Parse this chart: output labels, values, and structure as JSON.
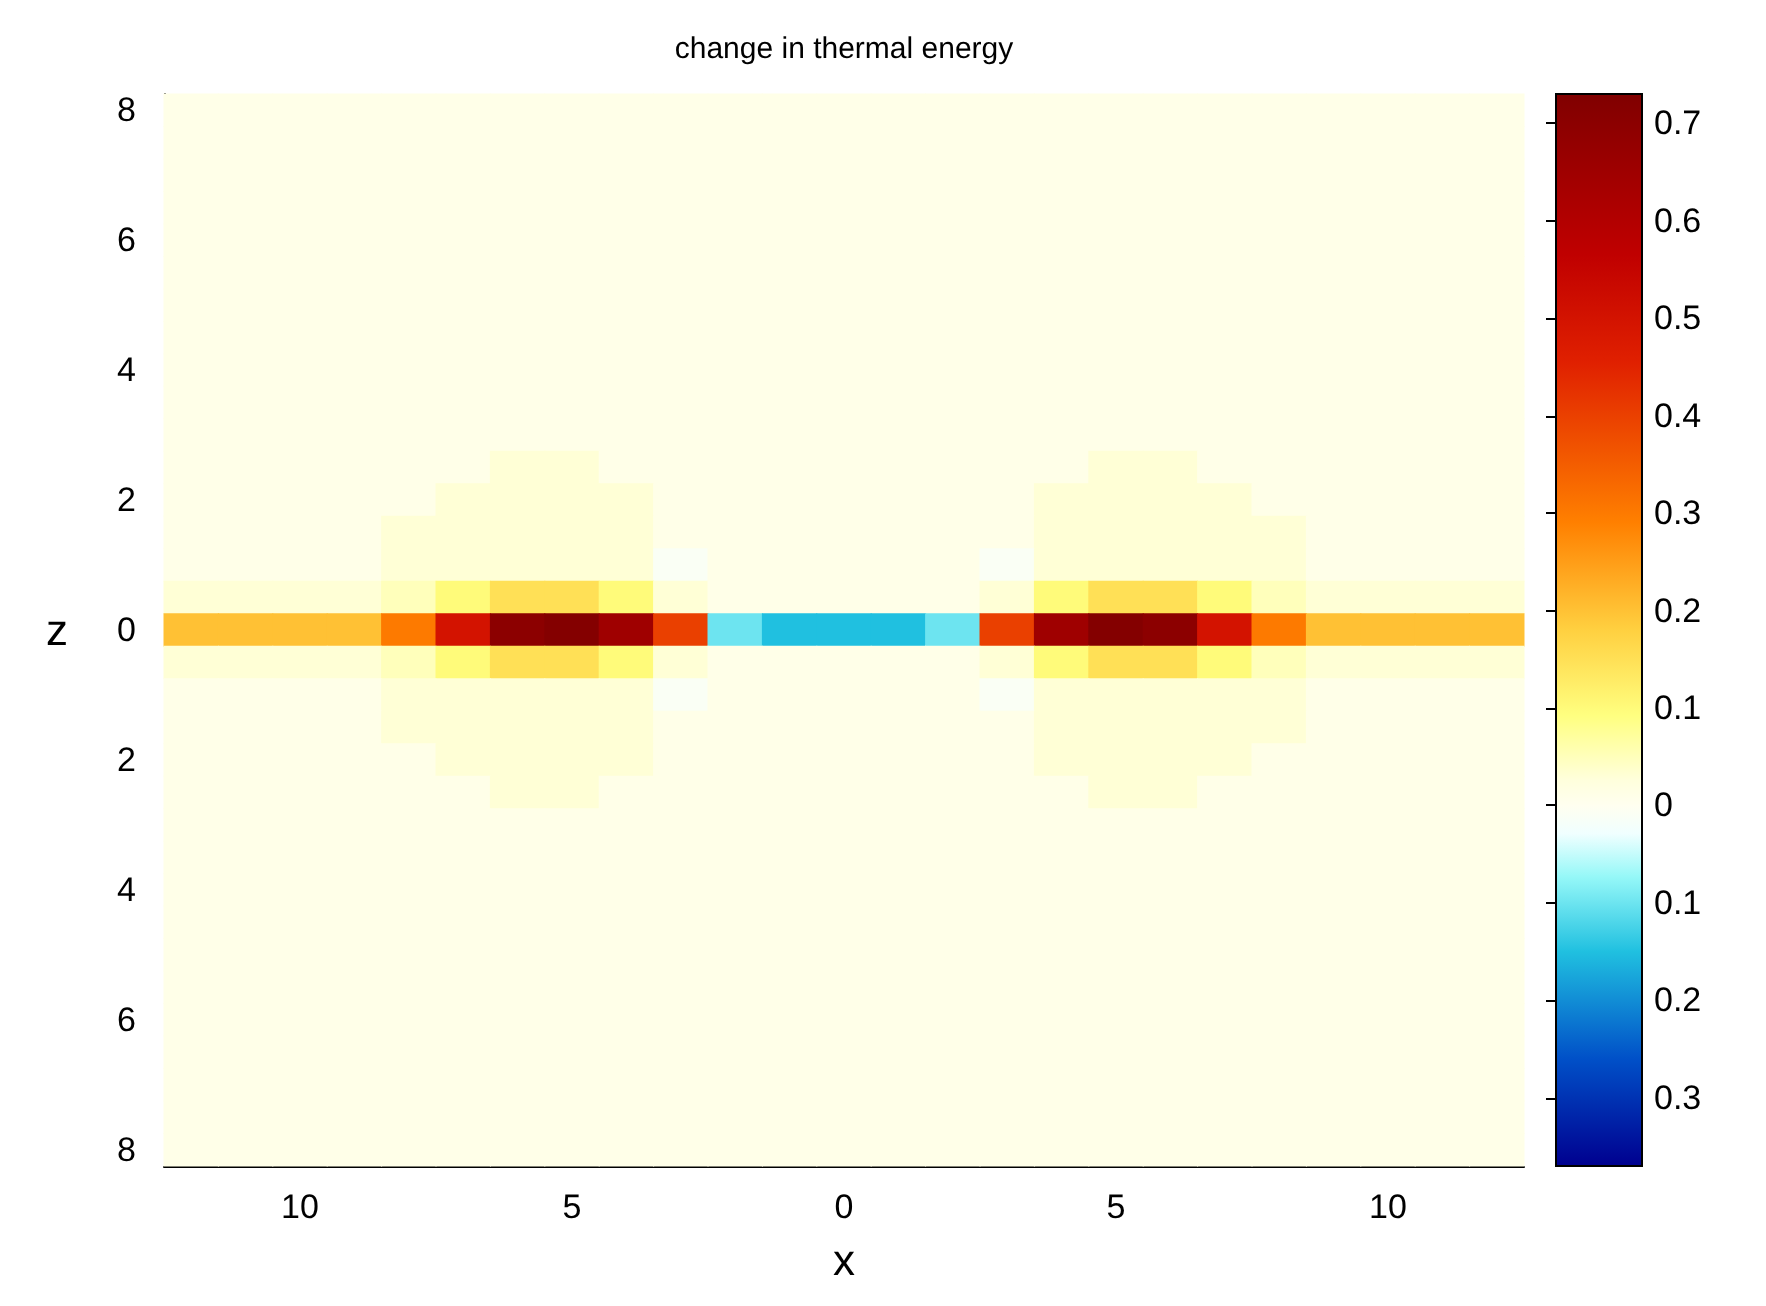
{
  "chart_data": {
    "type": "heatmap",
    "title": "change in thermal energy",
    "xlabel": "x",
    "ylabel": "z",
    "categories": [
      null,
      null,
      "10",
      null,
      null,
      null,
      null,
      "5",
      null,
      null,
      null,
      null,
      "0",
      null,
      null,
      null,
      null,
      "5",
      null,
      null,
      null,
      null,
      "10",
      null,
      null
    ],
    "y_categories": [
      "8",
      null,
      null,
      null,
      "6",
      null,
      null,
      null,
      "4",
      null,
      null,
      null,
      "2",
      null,
      null,
      null,
      "0",
      null,
      null,
      null,
      "2",
      null,
      null,
      null,
      "4",
      null,
      null,
      null,
      "6",
      null,
      null,
      null,
      "8"
    ],
    "cells": [
      [
        0.01,
        0.01,
        0.01,
        0.01,
        0.01,
        0.01,
        0.01,
        0.01,
        0.01,
        0.01,
        0.01,
        0.01,
        0.01,
        0.01,
        0.01,
        0.01,
        0.01,
        0.01,
        0.01,
        0.01,
        0.01,
        0.01,
        0.01,
        0.01,
        0.01
      ],
      [
        0.01,
        0.01,
        0.01,
        0.01,
        0.01,
        0.01,
        0.01,
        0.01,
        0.01,
        0.01,
        0.01,
        0.01,
        0.01,
        0.01,
        0.01,
        0.01,
        0.01,
        0.01,
        0.01,
        0.01,
        0.01,
        0.01,
        0.01,
        0.01,
        0.01
      ],
      [
        0.01,
        0.01,
        0.01,
        0.01,
        0.01,
        0.01,
        0.01,
        0.01,
        0.01,
        0.01,
        0.01,
        0.01,
        0.01,
        0.01,
        0.01,
        0.01,
        0.01,
        0.01,
        0.01,
        0.01,
        0.01,
        0.01,
        0.01,
        0.01,
        0.01
      ],
      [
        0.01,
        0.01,
        0.01,
        0.01,
        0.01,
        0.01,
        0.01,
        0.01,
        0.01,
        0.01,
        0.01,
        0.01,
        0.01,
        0.01,
        0.01,
        0.01,
        0.01,
        0.01,
        0.01,
        0.01,
        0.01,
        0.01,
        0.01,
        0.01,
        0.01
      ],
      [
        0.01,
        0.01,
        0.01,
        0.01,
        0.01,
        0.01,
        0.01,
        0.01,
        0.01,
        0.01,
        0.01,
        0.01,
        0.01,
        0.01,
        0.01,
        0.01,
        0.01,
        0.01,
        0.01,
        0.01,
        0.01,
        0.01,
        0.01,
        0.01,
        0.01
      ],
      [
        0.01,
        0.01,
        0.01,
        0.01,
        0.01,
        0.01,
        0.01,
        0.01,
        0.01,
        0.01,
        0.01,
        0.01,
        0.01,
        0.01,
        0.01,
        0.01,
        0.01,
        0.01,
        0.01,
        0.01,
        0.01,
        0.01,
        0.01,
        0.01,
        0.01
      ],
      [
        0.01,
        0.01,
        0.01,
        0.01,
        0.01,
        0.01,
        0.01,
        0.01,
        0.01,
        0.01,
        0.01,
        0.01,
        0.01,
        0.01,
        0.01,
        0.01,
        0.01,
        0.01,
        0.01,
        0.01,
        0.01,
        0.01,
        0.01,
        0.01,
        0.01
      ],
      [
        0.01,
        0.01,
        0.01,
        0.01,
        0.01,
        0.01,
        0.01,
        0.01,
        0.01,
        0.01,
        0.01,
        0.01,
        0.01,
        0.01,
        0.01,
        0.01,
        0.01,
        0.01,
        0.01,
        0.01,
        0.01,
        0.01,
        0.01,
        0.01,
        0.01
      ],
      [
        0.01,
        0.01,
        0.01,
        0.01,
        0.01,
        0.01,
        0.01,
        0.01,
        0.01,
        0.01,
        0.01,
        0.01,
        0.01,
        0.01,
        0.01,
        0.01,
        0.01,
        0.01,
        0.01,
        0.01,
        0.01,
        0.01,
        0.01,
        0.01,
        0.01
      ],
      [
        0.01,
        0.01,
        0.01,
        0.01,
        0.01,
        0.01,
        0.01,
        0.01,
        0.01,
        0.01,
        0.01,
        0.01,
        0.01,
        0.01,
        0.01,
        0.01,
        0.01,
        0.01,
        0.01,
        0.01,
        0.01,
        0.01,
        0.01,
        0.01,
        0.01
      ],
      [
        0.01,
        0.01,
        0.01,
        0.01,
        0.01,
        0.01,
        0.01,
        0.01,
        0.01,
        0.01,
        0.01,
        0.01,
        0.01,
        0.01,
        0.01,
        0.01,
        0.01,
        0.01,
        0.01,
        0.01,
        0.01,
        0.01,
        0.01,
        0.01,
        0.01
      ],
      [
        0.01,
        0.01,
        0.01,
        0.01,
        0.01,
        0.01,
        0.03,
        0.03,
        0.01,
        0.01,
        0.01,
        0.01,
        0.01,
        0.01,
        0.01,
        0.01,
        0.01,
        0.03,
        0.03,
        0.01,
        0.01,
        0.01,
        0.01,
        0.01,
        0.01
      ],
      [
        0.01,
        0.01,
        0.01,
        0.01,
        0.01,
        0.03,
        0.03,
        0.03,
        0.03,
        0.01,
        0.01,
        0.01,
        0.01,
        0.01,
        0.01,
        0.01,
        0.03,
        0.03,
        0.03,
        0.03,
        0.01,
        0.01,
        0.01,
        0.01,
        0.01
      ],
      [
        0.01,
        0.01,
        0.01,
        0.01,
        0.03,
        0.03,
        0.03,
        0.03,
        0.03,
        0.01,
        0.01,
        0.01,
        0.01,
        0.01,
        0.01,
        0.01,
        0.03,
        0.03,
        0.03,
        0.03,
        0.03,
        0.01,
        0.01,
        0.01,
        0.01
      ],
      [
        0.01,
        0.01,
        0.01,
        0.01,
        0.03,
        0.03,
        0.03,
        0.03,
        0.03,
        -0.01,
        0.01,
        0.01,
        0.01,
        0.01,
        0.01,
        -0.01,
        0.03,
        0.03,
        0.03,
        0.03,
        0.03,
        0.01,
        0.01,
        0.01,
        0.01
      ],
      [
        0.03,
        0.03,
        0.03,
        0.03,
        0.05,
        0.1,
        0.15,
        0.15,
        0.1,
        0.03,
        0.01,
        0.01,
        0.01,
        0.01,
        0.01,
        0.03,
        0.1,
        0.15,
        0.15,
        0.1,
        0.05,
        0.03,
        0.03,
        0.03,
        0.03
      ],
      [
        0.2,
        0.2,
        0.2,
        0.2,
        0.3,
        0.5,
        0.7,
        0.72,
        0.65,
        0.4,
        -0.1,
        -0.15,
        -0.15,
        -0.15,
        -0.1,
        0.4,
        0.65,
        0.72,
        0.7,
        0.5,
        0.3,
        0.2,
        0.2,
        0.2,
        0.2
      ],
      [
        0.03,
        0.03,
        0.03,
        0.03,
        0.05,
        0.1,
        0.15,
        0.15,
        0.1,
        0.03,
        0.01,
        0.01,
        0.01,
        0.01,
        0.01,
        0.03,
        0.1,
        0.15,
        0.15,
        0.1,
        0.05,
        0.03,
        0.03,
        0.03,
        0.03
      ],
      [
        0.01,
        0.01,
        0.01,
        0.01,
        0.03,
        0.03,
        0.03,
        0.03,
        0.03,
        -0.01,
        0.01,
        0.01,
        0.01,
        0.01,
        0.01,
        -0.01,
        0.03,
        0.03,
        0.03,
        0.03,
        0.03,
        0.01,
        0.01,
        0.01,
        0.01
      ],
      [
        0.01,
        0.01,
        0.01,
        0.01,
        0.03,
        0.03,
        0.03,
        0.03,
        0.03,
        0.01,
        0.01,
        0.01,
        0.01,
        0.01,
        0.01,
        0.01,
        0.03,
        0.03,
        0.03,
        0.03,
        0.03,
        0.01,
        0.01,
        0.01,
        0.01
      ],
      [
        0.01,
        0.01,
        0.01,
        0.01,
        0.01,
        0.03,
        0.03,
        0.03,
        0.03,
        0.01,
        0.01,
        0.01,
        0.01,
        0.01,
        0.01,
        0.01,
        0.03,
        0.03,
        0.03,
        0.03,
        0.01,
        0.01,
        0.01,
        0.01,
        0.01
      ],
      [
        0.01,
        0.01,
        0.01,
        0.01,
        0.01,
        0.01,
        0.03,
        0.03,
        0.01,
        0.01,
        0.01,
        0.01,
        0.01,
        0.01,
        0.01,
        0.01,
        0.01,
        0.03,
        0.03,
        0.01,
        0.01,
        0.01,
        0.01,
        0.01,
        0.01
      ],
      [
        0.01,
        0.01,
        0.01,
        0.01,
        0.01,
        0.01,
        0.01,
        0.01,
        0.01,
        0.01,
        0.01,
        0.01,
        0.01,
        0.01,
        0.01,
        0.01,
        0.01,
        0.01,
        0.01,
        0.01,
        0.01,
        0.01,
        0.01,
        0.01,
        0.01
      ],
      [
        0.01,
        0.01,
        0.01,
        0.01,
        0.01,
        0.01,
        0.01,
        0.01,
        0.01,
        0.01,
        0.01,
        0.01,
        0.01,
        0.01,
        0.01,
        0.01,
        0.01,
        0.01,
        0.01,
        0.01,
        0.01,
        0.01,
        0.01,
        0.01,
        0.01
      ],
      [
        0.01,
        0.01,
        0.01,
        0.01,
        0.01,
        0.01,
        0.01,
        0.01,
        0.01,
        0.01,
        0.01,
        0.01,
        0.01,
        0.01,
        0.01,
        0.01,
        0.01,
        0.01,
        0.01,
        0.01,
        0.01,
        0.01,
        0.01,
        0.01,
        0.01
      ],
      [
        0.01,
        0.01,
        0.01,
        0.01,
        0.01,
        0.01,
        0.01,
        0.01,
        0.01,
        0.01,
        0.01,
        0.01,
        0.01,
        0.01,
        0.01,
        0.01,
        0.01,
        0.01,
        0.01,
        0.01,
        0.01,
        0.01,
        0.01,
        0.01,
        0.01
      ],
      [
        0.01,
        0.01,
        0.01,
        0.01,
        0.01,
        0.01,
        0.01,
        0.01,
        0.01,
        0.01,
        0.01,
        0.01,
        0.01,
        0.01,
        0.01,
        0.01,
        0.01,
        0.01,
        0.01,
        0.01,
        0.01,
        0.01,
        0.01,
        0.01,
        0.01
      ],
      [
        0.01,
        0.01,
        0.01,
        0.01,
        0.01,
        0.01,
        0.01,
        0.01,
        0.01,
        0.01,
        0.01,
        0.01,
        0.01,
        0.01,
        0.01,
        0.01,
        0.01,
        0.01,
        0.01,
        0.01,
        0.01,
        0.01,
        0.01,
        0.01,
        0.01
      ],
      [
        0.01,
        0.01,
        0.01,
        0.01,
        0.01,
        0.01,
        0.01,
        0.01,
        0.01,
        0.01,
        0.01,
        0.01,
        0.01,
        0.01,
        0.01,
        0.01,
        0.01,
        0.01,
        0.01,
        0.01,
        0.01,
        0.01,
        0.01,
        0.01,
        0.01
      ],
      [
        0.01,
        0.01,
        0.01,
        0.01,
        0.01,
        0.01,
        0.01,
        0.01,
        0.01,
        0.01,
        0.01,
        0.01,
        0.01,
        0.01,
        0.01,
        0.01,
        0.01,
        0.01,
        0.01,
        0.01,
        0.01,
        0.01,
        0.01,
        0.01,
        0.01
      ],
      [
        0.01,
        0.01,
        0.01,
        0.01,
        0.01,
        0.01,
        0.01,
        0.01,
        0.01,
        0.01,
        0.01,
        0.01,
        0.01,
        0.01,
        0.01,
        0.01,
        0.01,
        0.01,
        0.01,
        0.01,
        0.01,
        0.01,
        0.01,
        0.01,
        0.01
      ],
      [
        0.01,
        0.01,
        0.01,
        0.01,
        0.01,
        0.01,
        0.01,
        0.01,
        0.01,
        0.01,
        0.01,
        0.01,
        0.01,
        0.01,
        0.01,
        0.01,
        0.01,
        0.01,
        0.01,
        0.01,
        0.01,
        0.01,
        0.01,
        0.01,
        0.01
      ],
      [
        0.01,
        0.01,
        0.01,
        0.01,
        0.01,
        0.01,
        0.01,
        0.01,
        0.01,
        0.01,
        0.01,
        0.01,
        0.01,
        0.01,
        0.01,
        0.01,
        0.01,
        0.01,
        0.01,
        0.01,
        0.01,
        0.01,
        0.01,
        0.01,
        0.01
      ]
    ],
    "clim": [
      -0.37,
      0.73
    ],
    "cticks": [
      {
        "value": 0.7,
        "label": "0.7"
      },
      {
        "value": 0.6,
        "label": "0.6"
      },
      {
        "value": 0.5,
        "label": "0.5"
      },
      {
        "value": 0.4,
        "label": "0.4"
      },
      {
        "value": 0.3,
        "label": "0.3"
      },
      {
        "value": 0.2,
        "label": "0.2"
      },
      {
        "value": 0.1,
        "label": "0.1"
      },
      {
        "value": 0,
        "label": "0"
      },
      {
        "value": -0.1,
        "label": "0.1"
      },
      {
        "value": -0.2,
        "label": "0.2"
      },
      {
        "value": -0.3,
        "label": "0.3"
      }
    ]
  }
}
